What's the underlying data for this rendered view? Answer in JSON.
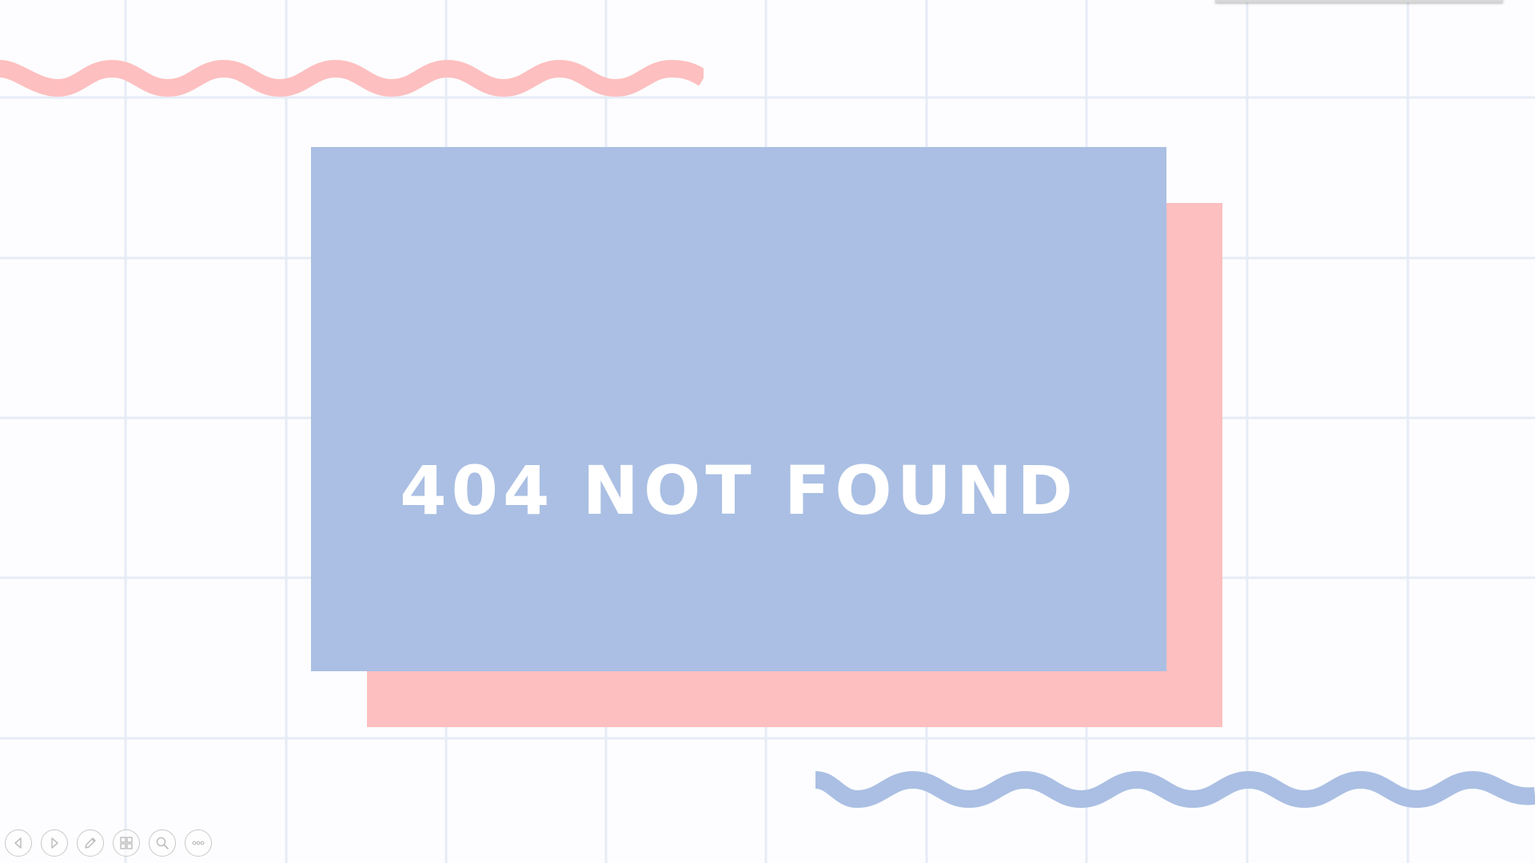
{
  "slide": {
    "headline": "404 NOT FOUND"
  },
  "colors": {
    "background": "#fdfdff",
    "grid_line": "#e6ecf6",
    "card": "#aabfe3",
    "card_shadow": "#fdbfbf",
    "wave_top": "#fdbfbf",
    "wave_bottom": "#aabfe3",
    "text": "#ffffff",
    "toolbar_icon": "#bdbdbd"
  },
  "toolbar": {
    "buttons": [
      {
        "name": "previous-slide-button",
        "icon": "triangle-left-icon"
      },
      {
        "name": "next-slide-button",
        "icon": "triangle-right-icon"
      },
      {
        "name": "pen-tool-button",
        "icon": "pen-icon"
      },
      {
        "name": "slide-sorter-button",
        "icon": "slides-grid-icon"
      },
      {
        "name": "zoom-button",
        "icon": "magnifier-icon"
      },
      {
        "name": "more-options-button",
        "icon": "ellipsis-icon"
      }
    ]
  }
}
